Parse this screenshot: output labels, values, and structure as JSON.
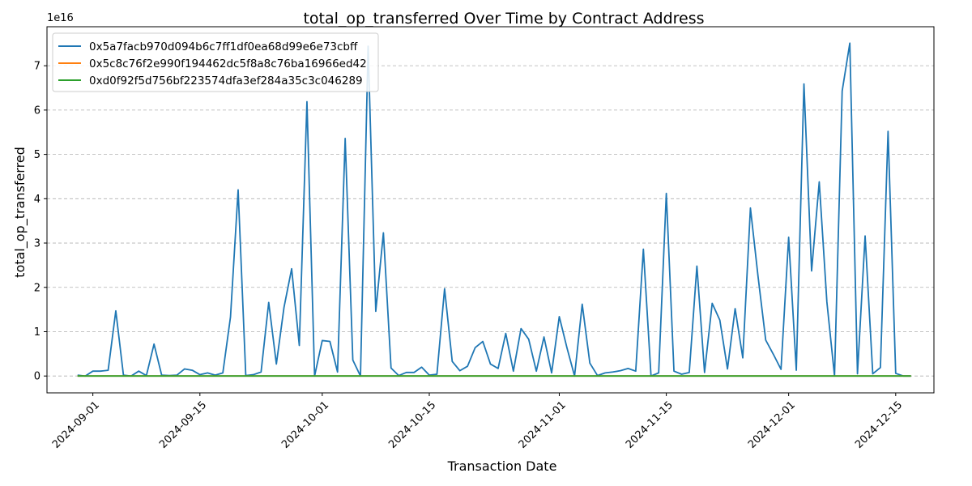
{
  "chart_data": {
    "type": "line",
    "title": "total_op_transferred Over Time by Contract Address",
    "xlabel": "Transaction Date",
    "ylabel": "total_op_transferred",
    "y_scale_label": "1e16",
    "y_scale": 1e+16,
    "xlim": [
      "2024-08-26",
      "2024-12-20"
    ],
    "ylim": [
      -0.38,
      7.88
    ],
    "x_ticks": [
      "2024-09-01",
      "2024-09-15",
      "2024-10-01",
      "2024-10-15",
      "2024-11-01",
      "2024-11-15",
      "2024-12-01",
      "2024-12-15"
    ],
    "y_ticks": [
      "0",
      "1",
      "2",
      "3",
      "4",
      "5",
      "6",
      "7"
    ],
    "grid": "y-dashed",
    "legend_position": "top-left",
    "series": [
      {
        "name": "0x5a7facb970d094b6c7ff1df0ea68d99e6e73cbff",
        "color": "#1f77b4",
        "x": [
          "2024-08-30",
          "2024-08-31",
          "2024-09-01",
          "2024-09-02",
          "2024-09-03",
          "2024-09-04",
          "2024-09-05",
          "2024-09-06",
          "2024-09-07",
          "2024-09-08",
          "2024-09-09",
          "2024-09-10",
          "2024-09-11",
          "2024-09-12",
          "2024-09-13",
          "2024-09-14",
          "2024-09-15",
          "2024-09-16",
          "2024-09-17",
          "2024-09-18",
          "2024-09-19",
          "2024-09-20",
          "2024-09-21",
          "2024-09-22",
          "2024-09-23",
          "2024-09-24",
          "2024-09-25",
          "2024-09-26",
          "2024-09-27",
          "2024-09-28",
          "2024-09-29",
          "2024-09-30",
          "2024-10-01",
          "2024-10-02",
          "2024-10-03",
          "2024-10-04",
          "2024-10-05",
          "2024-10-06",
          "2024-10-07",
          "2024-10-08",
          "2024-10-09",
          "2024-10-10",
          "2024-10-11",
          "2024-10-12",
          "2024-10-13",
          "2024-10-14",
          "2024-10-15",
          "2024-10-16",
          "2024-10-17",
          "2024-10-18",
          "2024-10-19",
          "2024-10-20",
          "2024-10-21",
          "2024-10-22",
          "2024-10-23",
          "2024-10-24",
          "2024-10-25",
          "2024-10-26",
          "2024-10-27",
          "2024-10-28",
          "2024-10-29",
          "2024-10-30",
          "2024-10-31",
          "2024-11-01",
          "2024-11-02",
          "2024-11-03",
          "2024-11-04",
          "2024-11-05",
          "2024-11-06",
          "2024-11-07",
          "2024-11-08",
          "2024-11-09",
          "2024-11-10",
          "2024-11-11",
          "2024-11-12",
          "2024-11-13",
          "2024-11-14",
          "2024-11-15",
          "2024-11-16",
          "2024-11-17",
          "2024-11-18",
          "2024-11-19",
          "2024-11-20",
          "2024-11-21",
          "2024-11-22",
          "2024-11-23",
          "2024-11-24",
          "2024-11-25",
          "2024-11-26",
          "2024-11-27",
          "2024-11-28",
          "2024-11-29",
          "2024-11-30",
          "2024-12-01",
          "2024-12-02",
          "2024-12-03",
          "2024-12-04",
          "2024-12-05",
          "2024-12-06",
          "2024-12-07",
          "2024-12-08",
          "2024-12-09",
          "2024-12-10",
          "2024-12-11",
          "2024-12-12",
          "2024-12-13",
          "2024-12-14",
          "2024-12-15",
          "2024-12-16",
          "2024-12-17"
        ],
        "values": [
          0.02,
          0.0,
          0.11,
          0.11,
          0.13,
          1.47,
          0.02,
          0.0,
          0.11,
          0.01,
          0.72,
          0.02,
          0.01,
          0.02,
          0.16,
          0.13,
          0.03,
          0.07,
          0.02,
          0.07,
          1.33,
          4.2,
          0.01,
          0.03,
          0.09,
          1.66,
          0.27,
          1.55,
          2.42,
          0.69,
          6.19,
          0.0,
          0.8,
          0.78,
          0.09,
          5.36,
          0.36,
          0.0,
          7.44,
          1.46,
          3.23,
          0.18,
          0.01,
          0.08,
          0.08,
          0.2,
          0.02,
          0.04,
          1.97,
          0.33,
          0.12,
          0.22,
          0.64,
          0.78,
          0.27,
          0.17,
          0.96,
          0.11,
          1.07,
          0.83,
          0.11,
          0.88,
          0.07,
          1.34,
          0.64,
          0.0,
          1.62,
          0.29,
          0.01,
          0.07,
          0.09,
          0.12,
          0.17,
          0.11,
          2.86,
          0.0,
          0.07,
          4.12,
          0.11,
          0.04,
          0.08,
          2.48,
          0.08,
          1.64,
          1.26,
          0.16,
          1.52,
          0.41,
          3.79,
          2.24,
          0.81,
          0.49,
          0.15,
          3.13,
          0.13,
          6.59,
          2.37,
          4.38,
          1.67,
          0.0,
          6.43,
          7.51,
          0.05,
          3.16,
          0.05,
          0.19,
          5.52,
          0.06,
          0.0,
          0.0
        ]
      },
      {
        "name": "0x5c8c76f2e990f194462dc5f8a8c76ba16966ed42",
        "color": "#ff7f0e",
        "x": [
          "2024-08-30",
          "2024-12-17"
        ],
        "values": [
          0.0,
          0.0
        ]
      },
      {
        "name": "0xd0f92f5d756bf223574dfa3ef284a35c3c046289",
        "color": "#2ca02c",
        "x": [
          "2024-08-30",
          "2024-12-17"
        ],
        "values": [
          0.0,
          0.0
        ]
      }
    ]
  }
}
